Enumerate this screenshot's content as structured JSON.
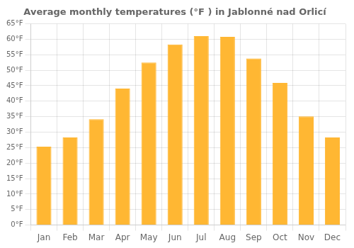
{
  "chart_data": {
    "type": "bar",
    "title": "Average monthly temperatures (°F ) in Jablonné nad Orlicí",
    "categories": [
      "Jan",
      "Feb",
      "Mar",
      "Apr",
      "May",
      "Jun",
      "Jul",
      "Aug",
      "Sep",
      "Oct",
      "Nov",
      "Dec"
    ],
    "values": [
      25.3,
      28.3,
      34.2,
      44.1,
      52.5,
      58.3,
      61.0,
      60.8,
      53.8,
      45.9,
      35.1,
      28.3
    ],
    "color": "#FFB733",
    "ylim": [
      0,
      65
    ],
    "yticks": [
      {
        "value": 0,
        "label": "0°F"
      },
      {
        "value": 5,
        "label": "5°F"
      },
      {
        "value": 10,
        "label": "10°F"
      },
      {
        "value": 15,
        "label": "15°F"
      },
      {
        "value": 20,
        "label": "20°F"
      },
      {
        "value": 25,
        "label": "25°F"
      },
      {
        "value": 30,
        "label": "30°F"
      },
      {
        "value": 35,
        "label": "35°F"
      },
      {
        "value": 40,
        "label": "40°F"
      },
      {
        "value": 45,
        "label": "45°F"
      },
      {
        "value": 50,
        "label": "50°F"
      },
      {
        "value": 55,
        "label": "55°F"
      },
      {
        "value": 60,
        "label": "60°F"
      },
      {
        "value": 65,
        "label": "65°F"
      }
    ],
    "grid": true
  }
}
